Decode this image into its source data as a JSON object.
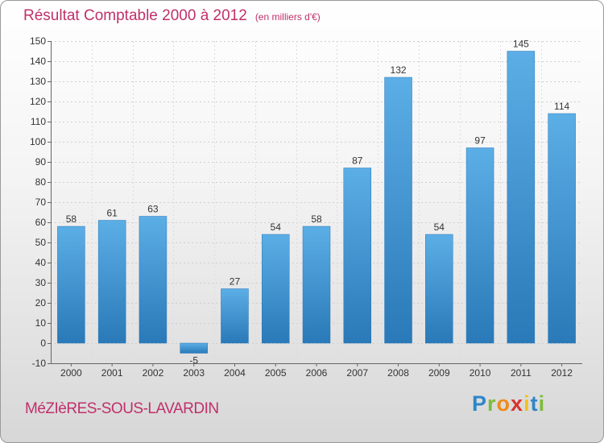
{
  "title": "Résultat Comptable 2000 à 2012",
  "subtitle": "(en milliers d'€)",
  "commune": "MéZIèRES-SOUS-LAVARDIN",
  "brand": {
    "letters": [
      {
        "ch": "P",
        "color": "#2e86c8"
      },
      {
        "ch": "r",
        "color": "#7cbc3a"
      },
      {
        "ch": "o",
        "color": "#f08a1c"
      },
      {
        "ch": "x",
        "color": "#d8332c"
      },
      {
        "ch": "i",
        "color": "#f2c21a"
      },
      {
        "ch": "t",
        "color": "#2e86c8"
      },
      {
        "ch": "i",
        "color": "#7cbc3a"
      }
    ]
  },
  "colors": {
    "bar_top": "#5caee6",
    "bar_bottom": "#2a79b8",
    "title": "#c0306a"
  },
  "chart_data": {
    "type": "bar",
    "categories": [
      "2000",
      "2001",
      "2002",
      "2003",
      "2004",
      "2005",
      "2006",
      "2007",
      "2008",
      "2009",
      "2010",
      "2011",
      "2012"
    ],
    "values": [
      58,
      61,
      63,
      -5,
      27,
      54,
      58,
      87,
      132,
      54,
      97,
      145,
      114
    ],
    "data_labels": [
      "58",
      "61",
      "63",
      "-5",
      "27",
      "54",
      "58",
      "87",
      "132",
      "54",
      "97",
      "145",
      "114"
    ],
    "ylim": [
      -10,
      150
    ],
    "yticks": [
      -10,
      0,
      10,
      20,
      30,
      40,
      50,
      60,
      70,
      80,
      90,
      100,
      110,
      120,
      130,
      140,
      150
    ],
    "grid": true
  }
}
